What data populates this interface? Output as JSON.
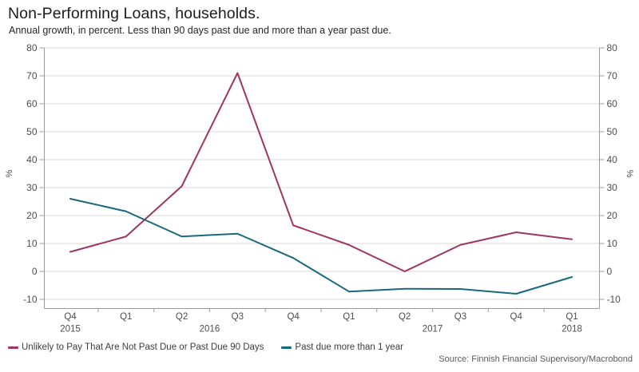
{
  "header": {
    "title": "Non-Performing Loans, households.",
    "subtitle": "Annual growth, in percent. Less than 90 days past due and more than a year past due."
  },
  "chart_data": {
    "type": "line",
    "title": "Non-Performing Loans, households.",
    "subtitle": "Annual growth, in percent. Less than 90 days past due and more than a year past due.",
    "categories": [
      "Q4",
      "Q1",
      "Q2",
      "Q3",
      "Q4",
      "Q1",
      "Q2",
      "Q3",
      "Q4",
      "Q1"
    ],
    "year_labels": [
      {
        "label": "2015",
        "index": 0
      },
      {
        "label": "2016",
        "index": 2.5
      },
      {
        "label": "2017",
        "index": 6.5
      },
      {
        "label": "2018",
        "index": 9
      }
    ],
    "series": [
      {
        "name": "Unlikely to Pay That Are Not Past Due or Past Due 90 Days",
        "color": "#9e3563",
        "values": [
          7,
          12.5,
          30.5,
          71,
          16.5,
          9.5,
          0,
          9.5,
          14,
          11.5
        ]
      },
      {
        "name": "Past due more than 1 year",
        "color": "#17697d",
        "values": [
          26,
          21.5,
          12.5,
          13.5,
          4.8,
          -7.2,
          -6.2,
          -6.3,
          -8,
          -2
        ]
      }
    ],
    "ylim": [
      -10,
      80
    ],
    "yticks": [
      80,
      70,
      60,
      50,
      40,
      30,
      20,
      10,
      0,
      -10
    ],
    "ylabel_left": "%",
    "ylabel_right": "%",
    "grid": true,
    "legend_position": "bottom-left"
  },
  "source": "Source: Finnish Financial Supervisory/Macrobond",
  "colors": {
    "background": "#ffffff",
    "grid": "#dadada",
    "axis": "#9b9b9b",
    "tick_label": "#4d4d4d",
    "title": "#1c1c1c",
    "subtitle": "#262626",
    "legend_text": "#3d3d3d",
    "source_text": "#595959"
  }
}
